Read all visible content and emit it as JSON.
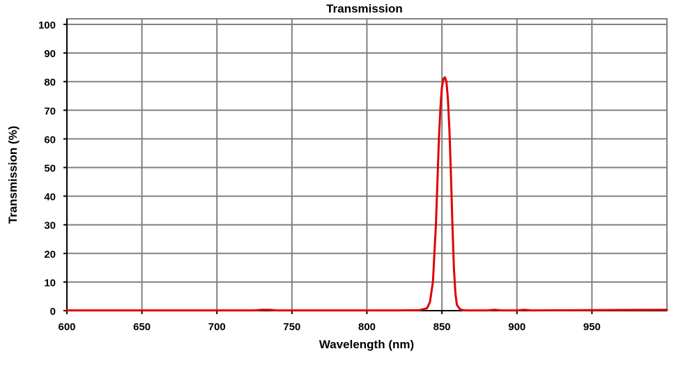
{
  "chart_data": {
    "type": "line",
    "title": "Transmission",
    "xlabel": "Wavelength (nm)",
    "ylabel": "Transmission (%)",
    "xlim": [
      600,
      1000
    ],
    "ylim": [
      0,
      100
    ],
    "xticks": [
      600,
      650,
      700,
      750,
      800,
      850,
      900,
      950
    ],
    "yticks": [
      0,
      10,
      20,
      30,
      40,
      50,
      60,
      70,
      80,
      90,
      100
    ],
    "grid": true,
    "legend": "none",
    "series": [
      {
        "color": "#e00000",
        "x": [
          600,
          650,
          700,
          725,
          730,
          735,
          740,
          780,
          820,
          835,
          840,
          842,
          844,
          846,
          848,
          849,
          850,
          851,
          852,
          853,
          854,
          855,
          856,
          857,
          858,
          859,
          860,
          862,
          864,
          866,
          870,
          880,
          885,
          890,
          900,
          905,
          910,
          950,
          1000
        ],
        "y": [
          0.1,
          0.1,
          0.1,
          0.1,
          0.3,
          0.3,
          0.1,
          0.1,
          0.1,
          0.2,
          0.8,
          3,
          10,
          30,
          60,
          71,
          78,
          81,
          81.5,
          80,
          74,
          63,
          48,
          30,
          15,
          6,
          2,
          0.5,
          0.2,
          0.1,
          0.1,
          0.1,
          0.3,
          0.1,
          0.1,
          0.3,
          0.1,
          0.2,
          0.3
        ]
      }
    ]
  }
}
